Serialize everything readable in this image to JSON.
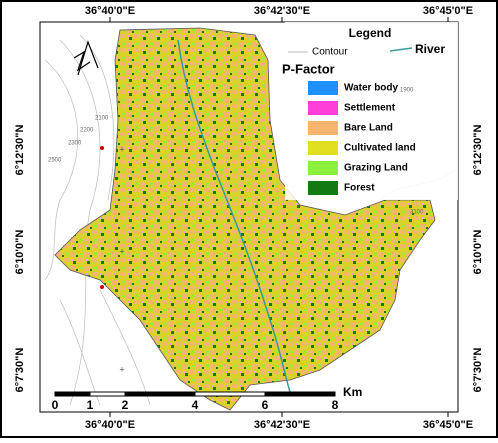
{
  "map": {
    "top_labels": [
      "36°40'0\"E",
      "36°42'30\"E",
      "36°45'0\"E"
    ],
    "bottom_labels": [
      "36°40'0\"E",
      "36°42'30\"E",
      "36°45'0\"E"
    ],
    "left_labels": [
      "6°12'30\"N",
      "6°10'0\"N",
      "6°7'30\"N"
    ],
    "right_labels": [
      "6°12'30\"N",
      "6°10'0\"N",
      "6°7'30\"N"
    ],
    "legend": {
      "title": "Legend",
      "contour": "Contour",
      "river": "River",
      "subtitle": "P-Factor",
      "items": [
        {
          "label": "Water body",
          "color": "#1e90ff"
        },
        {
          "label": "Settlement",
          "color": "#ff3fd8"
        },
        {
          "label": "Bare Land",
          "color": "#f5b56c"
        },
        {
          "label": "Cultivated land",
          "color": "#e0e020"
        },
        {
          "label": "Grazing Land",
          "color": "#8cf03c"
        },
        {
          "label": "Forest",
          "color": "#137a13"
        }
      ]
    },
    "scale": {
      "ticks": [
        0,
        1,
        2,
        4,
        6,
        8
      ],
      "unit": "Km"
    },
    "contour_labels": [
      "1900",
      "3100",
      "2500",
      "2300",
      "2200",
      "2100"
    ]
  }
}
